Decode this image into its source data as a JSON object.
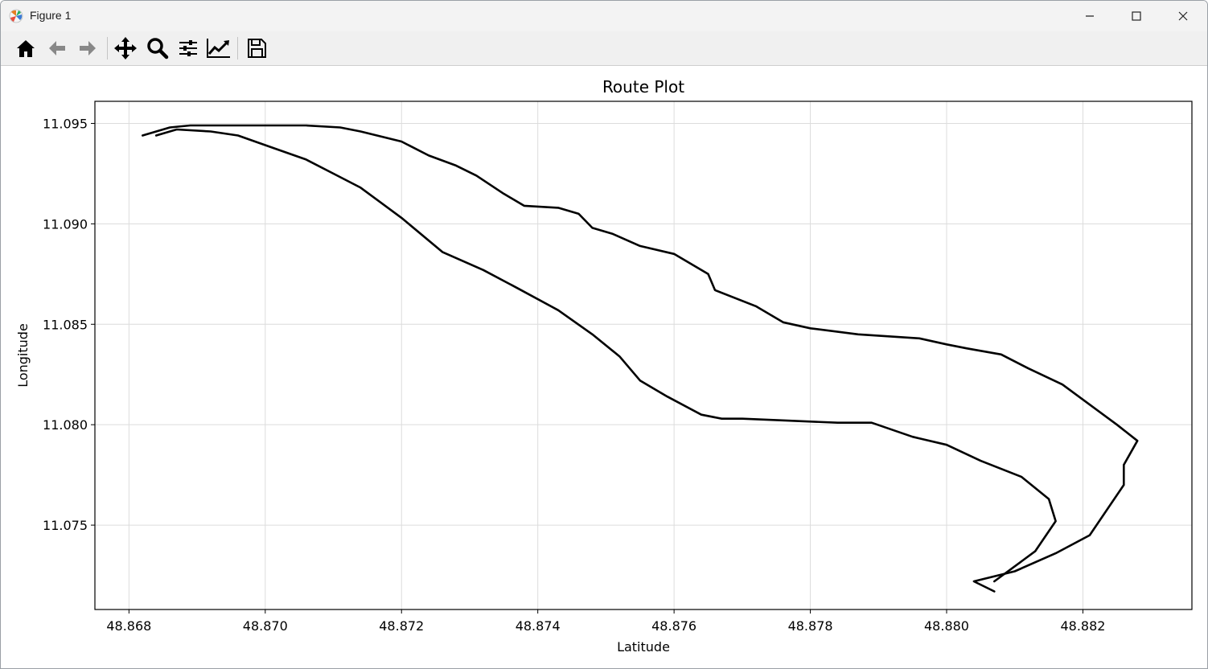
{
  "window": {
    "title": "Figure 1",
    "controls": [
      "minimize",
      "maximize",
      "close"
    ]
  },
  "toolbar": {
    "buttons": [
      {
        "name": "home",
        "icon": "home-icon"
      },
      {
        "name": "back",
        "icon": "arrow-left-icon"
      },
      {
        "name": "forward",
        "icon": "arrow-right-icon"
      },
      {
        "name": "pan",
        "icon": "move-icon"
      },
      {
        "name": "zoom",
        "icon": "magnifier-icon"
      },
      {
        "name": "configure-subplots",
        "icon": "sliders-icon"
      },
      {
        "name": "edit-axis",
        "icon": "line-chart-icon"
      },
      {
        "name": "save",
        "icon": "floppy-disk-icon"
      }
    ]
  },
  "chart_data": {
    "type": "line",
    "title": "Route Plot",
    "xlabel": "Latitude",
    "ylabel": "Longitude",
    "xlim": [
      48.8675,
      48.8836
    ],
    "ylim": [
      11.0708,
      11.0961
    ],
    "xticks": [
      48.868,
      48.87,
      48.872,
      48.874,
      48.876,
      48.878,
      48.88,
      48.882
    ],
    "xtick_labels": [
      "48.868",
      "48.870",
      "48.872",
      "48.874",
      "48.876",
      "48.878",
      "48.880",
      "48.882"
    ],
    "yticks": [
      11.075,
      11.08,
      11.085,
      11.09,
      11.095
    ],
    "ytick_labels": [
      "11.075",
      "11.080",
      "11.085",
      "11.090",
      "11.095"
    ],
    "grid": true,
    "line_color": "#000000",
    "series": [
      {
        "x": [
          48.8682,
          48.8686,
          48.8689,
          48.8694,
          48.87,
          48.8706,
          48.8711,
          48.8714,
          48.872,
          48.8724,
          48.8728,
          48.8731,
          48.8735,
          48.8738,
          48.8743,
          48.8746,
          48.8748,
          48.8751,
          48.8755,
          48.876,
          48.8765,
          48.8766,
          48.8772,
          48.8776,
          48.878,
          48.8787,
          48.8796,
          48.88,
          48.8803,
          48.8808,
          48.8812,
          48.8817,
          48.8821,
          48.8825,
          48.8828,
          48.8826,
          48.8826,
          48.8821,
          48.8816,
          48.881,
          48.8804,
          48.8807
        ],
        "y": [
          11.0944,
          11.0948,
          11.0949,
          11.0949,
          11.0949,
          11.0949,
          11.0948,
          11.0946,
          11.0941,
          11.0934,
          11.0929,
          11.0924,
          11.0915,
          11.0909,
          11.0908,
          11.0905,
          11.0898,
          11.0895,
          11.0889,
          11.0885,
          11.0875,
          11.0867,
          11.0859,
          11.0851,
          11.0848,
          11.0845,
          11.0843,
          11.084,
          11.0838,
          11.0835,
          11.0828,
          11.082,
          11.081,
          11.08,
          11.0792,
          11.078,
          11.077,
          11.0745,
          11.0736,
          11.0727,
          11.0722,
          11.0717
        ]
      },
      {
        "x": [
          48.8807,
          48.8813,
          48.8816,
          48.8815,
          48.8811,
          48.8805,
          48.88,
          48.8795,
          48.8789,
          48.8784,
          48.8777,
          48.877,
          48.8767,
          48.8764,
          48.8759,
          48.8755,
          48.8752,
          48.8748,
          48.8743,
          48.8737,
          48.8732,
          48.8726,
          48.872,
          48.8714,
          48.871,
          48.8706,
          48.8701,
          48.8696,
          48.8692,
          48.8687,
          48.8684
        ],
        "y": [
          11.0722,
          11.0737,
          11.0752,
          11.0763,
          11.0774,
          11.0782,
          11.079,
          11.0794,
          11.0801,
          11.0801,
          11.0802,
          11.0803,
          11.0803,
          11.0805,
          11.0814,
          11.0822,
          11.0834,
          11.0845,
          11.0857,
          11.0868,
          11.0877,
          11.0886,
          11.0903,
          11.0918,
          11.0925,
          11.0932,
          11.0938,
          11.0944,
          11.0946,
          11.0947,
          11.0944
        ]
      }
    ]
  }
}
